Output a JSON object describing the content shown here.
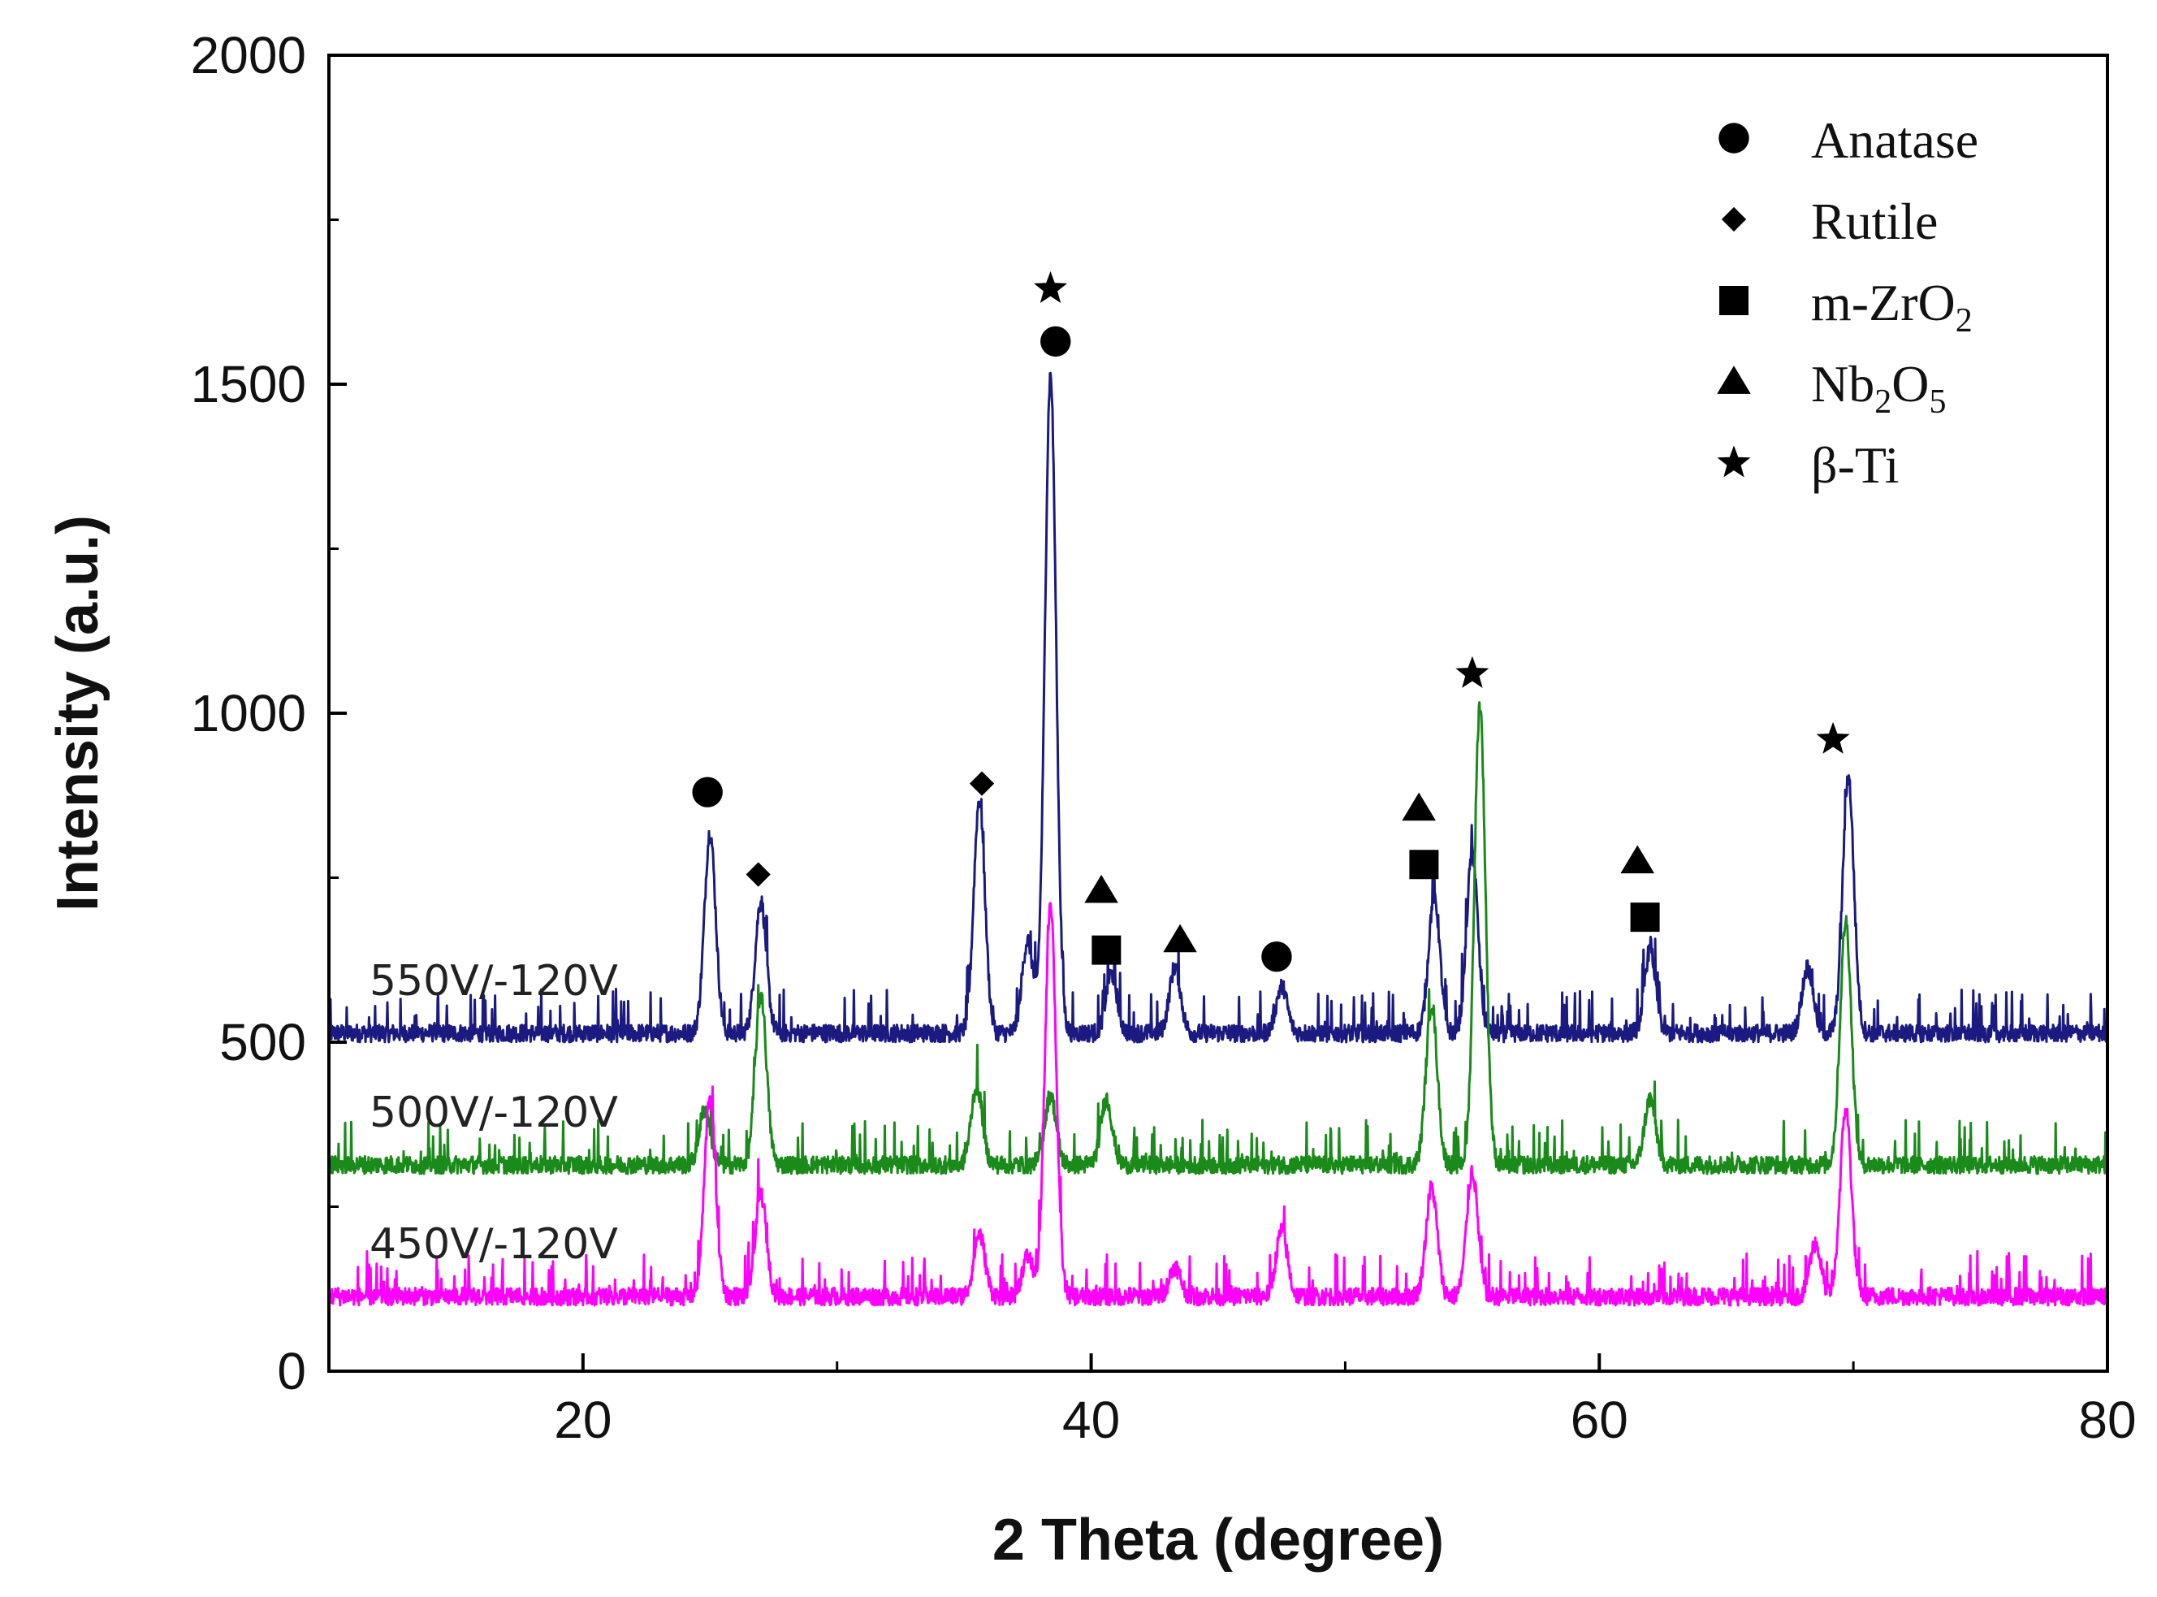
{
  "chart_data": {
    "type": "line",
    "title": "",
    "xlabel": "2 Theta (degree)",
    "ylabel": "Intensity (a.u.)",
    "xlim": [
      10,
      80
    ],
    "ylim": [
      0,
      2000
    ],
    "x_ticks": [
      20,
      40,
      60,
      80
    ],
    "y_ticks": [
      0,
      500,
      1000,
      1500,
      2000
    ],
    "grid": false,
    "legend_position": "top-right",
    "legend": [
      {
        "marker": "circle",
        "label": "Anatase"
      },
      {
        "marker": "diamond",
        "label": "Rutile"
      },
      {
        "marker": "square",
        "label": "m-ZrO",
        "sub1": "2",
        "mid": "",
        "sub2": ""
      },
      {
        "marker": "triangle",
        "label": "Nb",
        "sub1": "2",
        "mid": "O",
        "sub2": "5"
      },
      {
        "marker": "star",
        "label": "β-Ti"
      }
    ],
    "series": [
      {
        "name": "550V/-120V",
        "color": "#1a1a80",
        "baseline": 500,
        "peaks": [
          {
            "x": 25.0,
            "y": 805
          },
          {
            "x": 27.0,
            "y": 700
          },
          {
            "x": 35.6,
            "y": 855
          },
          {
            "x": 37.5,
            "y": 640
          },
          {
            "x": 38.4,
            "y": 1500
          },
          {
            "x": 40.8,
            "y": 590
          },
          {
            "x": 43.3,
            "y": 600
          },
          {
            "x": 47.5,
            "y": 570
          },
          {
            "x": 53.5,
            "y": 710
          },
          {
            "x": 55.0,
            "y": 775
          },
          {
            "x": 62.0,
            "y": 625
          },
          {
            "x": 68.2,
            "y": 600
          },
          {
            "x": 69.8,
            "y": 890
          }
        ]
      },
      {
        "name": "500V/-120V",
        "color": "#1a8a1a",
        "baseline": 300,
        "peaks": [
          {
            "x": 24.8,
            "y": 385
          },
          {
            "x": 27.0,
            "y": 560
          },
          {
            "x": 35.5,
            "y": 420
          },
          {
            "x": 38.4,
            "y": 405
          },
          {
            "x": 40.6,
            "y": 400
          },
          {
            "x": 53.4,
            "y": 545
          },
          {
            "x": 55.3,
            "y": 1000
          },
          {
            "x": 62.0,
            "y": 400
          },
          {
            "x": 69.7,
            "y": 670
          }
        ]
      },
      {
        "name": "450V/-120V",
        "color": "#ff00ff",
        "baseline": 100,
        "peaks": [
          {
            "x": 25.0,
            "y": 405
          },
          {
            "x": 27.0,
            "y": 255
          },
          {
            "x": 35.6,
            "y": 195
          },
          {
            "x": 37.5,
            "y": 160
          },
          {
            "x": 38.4,
            "y": 700
          },
          {
            "x": 43.3,
            "y": 145
          },
          {
            "x": 47.5,
            "y": 200
          },
          {
            "x": 53.4,
            "y": 265
          },
          {
            "x": 55.0,
            "y": 290
          },
          {
            "x": 68.5,
            "y": 180
          },
          {
            "x": 69.7,
            "y": 385
          }
        ]
      }
    ],
    "annotations": [
      {
        "marker": "circle",
        "x": 24.9,
        "y": 880
      },
      {
        "marker": "diamond",
        "x": 26.9,
        "y": 755
      },
      {
        "marker": "diamond",
        "x": 35.7,
        "y": 893
      },
      {
        "marker": "star",
        "x": 38.4,
        "y": 1645
      },
      {
        "marker": "circle",
        "x": 38.6,
        "y": 1565
      },
      {
        "marker": "triangle",
        "x": 40.4,
        "y": 730
      },
      {
        "marker": "square",
        "x": 40.6,
        "y": 640
      },
      {
        "marker": "triangle",
        "x": 43.5,
        "y": 655
      },
      {
        "marker": "circle",
        "x": 47.3,
        "y": 630
      },
      {
        "marker": "triangle",
        "x": 52.9,
        "y": 855
      },
      {
        "marker": "square",
        "x": 53.1,
        "y": 770
      },
      {
        "marker": "star",
        "x": 55.0,
        "y": 1060
      },
      {
        "marker": "triangle",
        "x": 61.5,
        "y": 775
      },
      {
        "marker": "square",
        "x": 61.8,
        "y": 690
      },
      {
        "marker": "star",
        "x": 69.2,
        "y": 960
      }
    ]
  }
}
